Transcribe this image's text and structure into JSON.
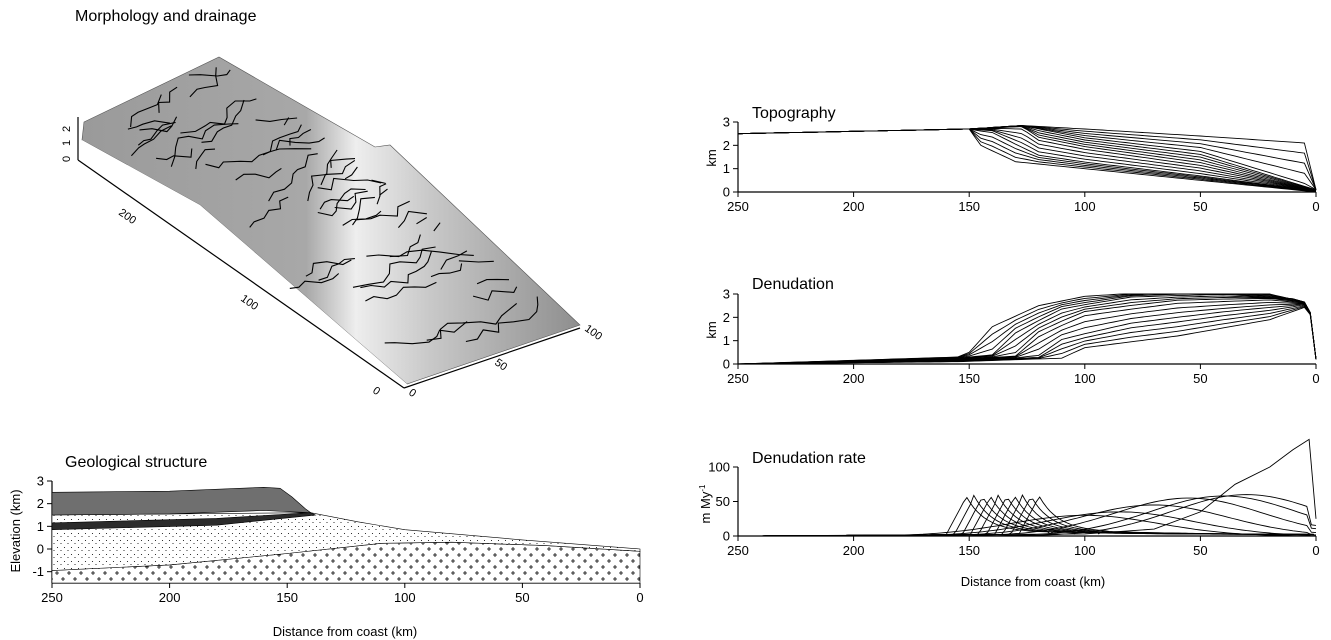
{
  "titles": {
    "morphology": "Morphology and drainage",
    "geology": "Geological structure",
    "topography": "Topography",
    "denudation": "Denudation",
    "rate": "Denudation rate"
  },
  "axis_labels": {
    "distance": "Distance from coast (km)",
    "elevation": "Elevation (km)",
    "km": "km",
    "rate_unit": "m My",
    "rate_unit_sup": "-1"
  },
  "block_ticks": {
    "vertical": [
      "0",
      "1",
      "2"
    ],
    "along": [
      "0",
      "100",
      "200"
    ],
    "across": [
      "0",
      "50",
      "100"
    ]
  },
  "chart_data": [
    {
      "id": "topography",
      "type": "line",
      "title": "Topography",
      "xlabel": "",
      "ylabel": "km",
      "xlim": [
        250,
        0
      ],
      "ylim": [
        0,
        3
      ],
      "xticks": [
        250,
        200,
        150,
        100,
        50,
        0
      ],
      "yticks": [
        0,
        1,
        2,
        3
      ],
      "series_note_count": 20,
      "series": [
        {
          "x": [
            250,
            150,
            127,
            100,
            50,
            5,
            0
          ],
          "y": [
            2.5,
            2.7,
            2.85,
            2.7,
            2.4,
            2.1,
            0.1
          ]
        },
        {
          "x": [
            250,
            150,
            127,
            120,
            100,
            50,
            0
          ],
          "y": [
            2.5,
            2.7,
            2.85,
            2.7,
            2.3,
            1.7,
            0.1
          ]
        },
        {
          "x": [
            250,
            150,
            127,
            120,
            100,
            50,
            0
          ],
          "y": [
            2.5,
            2.7,
            2.8,
            2.3,
            1.9,
            1.2,
            0.05
          ]
        },
        {
          "x": [
            250,
            150,
            140,
            120,
            100,
            50,
            0
          ],
          "y": [
            2.5,
            2.7,
            2.6,
            1.6,
            1.3,
            0.7,
            0.05
          ]
        },
        {
          "x": [
            250,
            150,
            145,
            130,
            100,
            50,
            0
          ],
          "y": [
            2.5,
            2.7,
            2.0,
            1.3,
            1.0,
            0.5,
            0.0
          ]
        }
      ]
    },
    {
      "id": "denudation",
      "type": "line",
      "title": "Denudation",
      "xlabel": "",
      "ylabel": "km",
      "xlim": [
        250,
        0
      ],
      "ylim": [
        0,
        3
      ],
      "xticks": [
        250,
        200,
        150,
        100,
        50,
        0
      ],
      "yticks": [
        0,
        1,
        2,
        3
      ],
      "series": [
        {
          "x": [
            250,
            155,
            150,
            140,
            120,
            100,
            60,
            20,
            3,
            0
          ],
          "y": [
            0.0,
            0.3,
            0.5,
            1.6,
            2.5,
            2.9,
            3.15,
            3.0,
            2.6,
            0.2
          ]
        },
        {
          "x": [
            250,
            155,
            140,
            130,
            110,
            80,
            40,
            10,
            3,
            0
          ],
          "y": [
            0.0,
            0.25,
            0.4,
            1.4,
            2.4,
            2.9,
            3.0,
            2.8,
            2.6,
            0.2
          ]
        },
        {
          "x": [
            250,
            155,
            130,
            120,
            100,
            60,
            20,
            3,
            0
          ],
          "y": [
            0.0,
            0.2,
            0.35,
            1.3,
            2.2,
            2.7,
            2.8,
            2.6,
            0.2
          ]
        },
        {
          "x": [
            250,
            155,
            120,
            110,
            80,
            40,
            10,
            3,
            0
          ],
          "y": [
            0.0,
            0.15,
            0.3,
            1.0,
            1.7,
            2.2,
            2.5,
            2.6,
            0.2
          ]
        },
        {
          "x": [
            250,
            155,
            110,
            100,
            60,
            20,
            3,
            0
          ],
          "y": [
            0.0,
            0.1,
            0.25,
            0.7,
            1.2,
            1.9,
            2.5,
            0.2
          ]
        }
      ]
    },
    {
      "id": "denudation_rate",
      "type": "line",
      "title": "Denudation rate",
      "xlabel": "Distance from coast (km)",
      "ylabel": "m My-1",
      "xlim": [
        250,
        0
      ],
      "ylim": [
        0,
        100
      ],
      "xticks": [
        250,
        200,
        150,
        100,
        50,
        0
      ],
      "yticks": [
        0,
        50,
        100
      ],
      "series": [
        {
          "x": [
            250,
            155,
            145,
            135,
            120,
            100,
            0
          ],
          "y": [
            0,
            2,
            50,
            10,
            3,
            2,
            0
          ]
        },
        {
          "x": [
            250,
            150,
            140,
            130,
            115,
            100,
            0
          ],
          "y": [
            0,
            2,
            50,
            12,
            4,
            2,
            0
          ]
        },
        {
          "x": [
            250,
            145,
            135,
            125,
            110,
            90,
            0
          ],
          "y": [
            0,
            2,
            48,
            15,
            6,
            3,
            0
          ]
        },
        {
          "x": [
            250,
            140,
            130,
            120,
            100,
            80,
            0
          ],
          "y": [
            0,
            2,
            45,
            20,
            10,
            5,
            0
          ]
        },
        {
          "x": [
            250,
            120,
            100,
            80,
            50,
            20,
            3,
            0
          ],
          "y": [
            0,
            5,
            25,
            40,
            60,
            58,
            45,
            25
          ]
        },
        {
          "x": [
            250,
            100,
            70,
            50,
            35,
            20,
            10,
            3,
            0
          ],
          "y": [
            0,
            3,
            10,
            35,
            75,
            100,
            125,
            140,
            25
          ]
        }
      ]
    },
    {
      "id": "geology",
      "type": "area",
      "title": "Geological structure",
      "xlabel": "Distance from coast (km)",
      "ylabel": "Elevation (km)",
      "xlim": [
        250,
        0
      ],
      "ylim": [
        -1.5,
        3
      ],
      "xticks": [
        250,
        200,
        150,
        100,
        50,
        0
      ],
      "yticks": [
        -1,
        0,
        1,
        2,
        3
      ],
      "layers": [
        {
          "name": "",
          "top_x": [
            250,
            155,
            150,
            140
          ],
          "top_y": [
            2.5,
            2.75,
            2.5,
            1.6
          ],
          "base_y": 1.5,
          "fill": "#6f6f6f"
        },
        {
          "name": "",
          "top_x": [
            250,
            140
          ],
          "top_y": [
            1.15,
            1.6
          ],
          "thickness": 0.3,
          "fill": "#2b2b2b"
        },
        {
          "name": "",
          "surface_x": [
            250,
            140,
            100,
            50,
            0
          ],
          "surface_y": [
            1.5,
            1.6,
            0.8,
            0.4,
            0.0
          ],
          "fill": "stipple"
        },
        {
          "name": "",
          "top_x": [
            250,
            100,
            80,
            0
          ],
          "top_y": [
            -0.95,
            0.3,
            0.3,
            -0.1
          ],
          "fill": "crosses"
        }
      ]
    }
  ],
  "colors": {
    "block_surface_light": "#f2f2f2",
    "block_surface_dark": "#9a9a9a",
    "rivers": "#000000"
  }
}
